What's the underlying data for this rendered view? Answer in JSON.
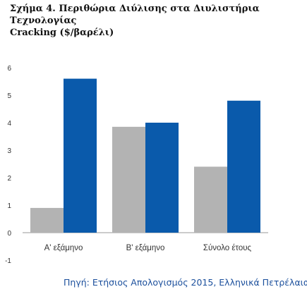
{
  "title": {
    "line1": "Σχήμα 4. Περιθώρια Διύλισης στα Διυλιστήρια Τεχνολογίας",
    "line2": "Cracking ($/βαρέλι)"
  },
  "source": "Πηγή: Ετήσιος Απολογισμός 2015, Ελληνικά Πετρέλαια",
  "colors": {
    "series1": "#b3b3b3",
    "series2": "#0a5aab",
    "axis_text": "#333333",
    "zero_line": "#999999"
  },
  "chart_data": {
    "type": "bar",
    "title": "Σχήμα 4. Περιθώρια Διύλισης στα Διυλιστήρια Τεχνολογίας Cracking ($/βαρέλι)",
    "xlabel": "",
    "ylabel": "",
    "categories": [
      "Α' εξάμηνο",
      "Β' εξάμηνο",
      "Σύνολο έτους"
    ],
    "series": [
      {
        "values": [
          0.9,
          3.85,
          2.4
        ]
      },
      {
        "values": [
          5.6,
          4.0,
          4.8
        ]
      }
    ],
    "ylim": [
      -1,
      6
    ],
    "yticks": [
      -1,
      0,
      1,
      2,
      3,
      4,
      5,
      6
    ],
    "grid": false,
    "legend": "none"
  }
}
